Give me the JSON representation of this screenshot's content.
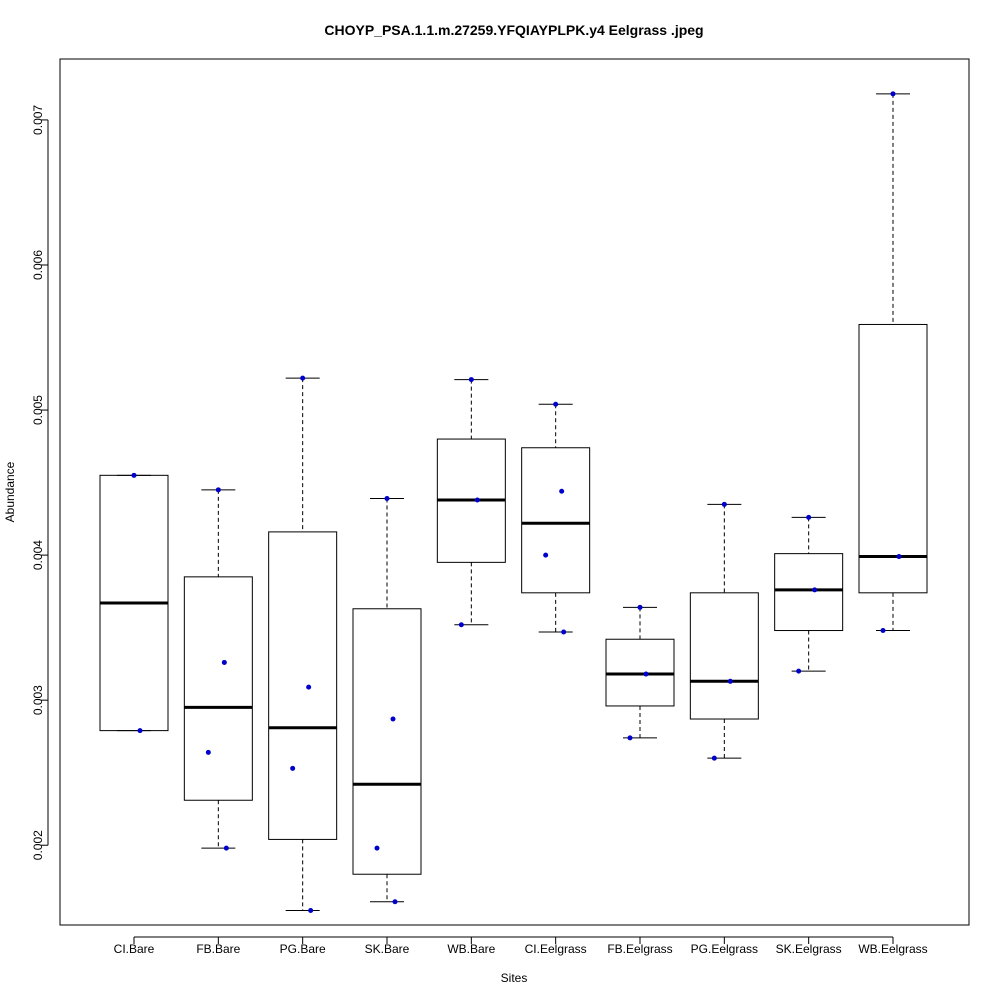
{
  "chart_data": {
    "type": "boxplot",
    "title": "CHOYP_PSA.1.1.m.27259.YFQIAYPLPK.y4 Eelgrass .jpeg",
    "xlabel": "Sites",
    "ylabel": "Abundance",
    "ylim": [
      0.00145,
      0.00742
    ],
    "y_ticks": [
      0.002,
      0.003,
      0.004,
      0.005,
      0.006,
      0.007
    ],
    "y_tick_labels": [
      "0.002",
      "0.003",
      "0.004",
      "0.005",
      "0.006",
      "0.007"
    ],
    "categories": [
      "CI.Bare",
      "FB.Bare",
      "PG.Bare",
      "SK.Bare",
      "WB.Bare",
      "CI.Eelgrass",
      "FB.Eelgrass",
      "PG.Eelgrass",
      "SK.Eelgrass",
      "WB.Eelgrass"
    ],
    "boxes": [
      {
        "category": "CI.Bare",
        "whisker_low": 0.00279,
        "q1": 0.00279,
        "median": 0.00367,
        "q3": 0.00455,
        "whisker_high": 0.00455,
        "points": [
          0.00455,
          0.00279
        ]
      },
      {
        "category": "FB.Bare",
        "whisker_low": 0.00198,
        "q1": 0.00231,
        "median": 0.00295,
        "q3": 0.00385,
        "whisker_high": 0.00445,
        "points": [
          0.00445,
          0.00326,
          0.00264,
          0.00198
        ]
      },
      {
        "category": "PG.Bare",
        "whisker_low": 0.00155,
        "q1": 0.00204,
        "median": 0.00281,
        "q3": 0.00416,
        "whisker_high": 0.00522,
        "points": [
          0.00522,
          0.00309,
          0.00253,
          0.00155
        ]
      },
      {
        "category": "SK.Bare",
        "whisker_low": 0.00161,
        "q1": 0.0018,
        "median": 0.00242,
        "q3": 0.00363,
        "whisker_high": 0.00439,
        "points": [
          0.00439,
          0.00287,
          0.00198,
          0.00161
        ]
      },
      {
        "category": "WB.Bare",
        "whisker_low": 0.00352,
        "q1": 0.00395,
        "median": 0.00438,
        "q3": 0.0048,
        "whisker_high": 0.00521,
        "points": [
          0.00521,
          0.00438,
          0.00352
        ]
      },
      {
        "category": "CI.Eelgrass",
        "whisker_low": 0.00347,
        "q1": 0.00374,
        "median": 0.00422,
        "q3": 0.00474,
        "whisker_high": 0.00504,
        "points": [
          0.00504,
          0.00444,
          0.004,
          0.00347
        ]
      },
      {
        "category": "FB.Eelgrass",
        "whisker_low": 0.00274,
        "q1": 0.00296,
        "median": 0.00318,
        "q3": 0.00342,
        "whisker_high": 0.00364,
        "points": [
          0.00364,
          0.00318,
          0.00274
        ]
      },
      {
        "category": "PG.Eelgrass",
        "whisker_low": 0.0026,
        "q1": 0.00287,
        "median": 0.00313,
        "q3": 0.00374,
        "whisker_high": 0.00435,
        "points": [
          0.00435,
          0.00313,
          0.0026
        ]
      },
      {
        "category": "SK.Eelgrass",
        "whisker_low": 0.0032,
        "q1": 0.00348,
        "median": 0.00376,
        "q3": 0.00401,
        "whisker_high": 0.00426,
        "points": [
          0.00426,
          0.00376,
          0.0032
        ]
      },
      {
        "category": "WB.Eelgrass",
        "whisker_low": 0.00348,
        "q1": 0.00374,
        "median": 0.00399,
        "q3": 0.00559,
        "whisker_high": 0.00718,
        "points": [
          0.00718,
          0.00399,
          0.00348
        ]
      }
    ],
    "colors": {
      "point": "#0000cd",
      "line": "#000000",
      "background": "#ffffff"
    }
  }
}
